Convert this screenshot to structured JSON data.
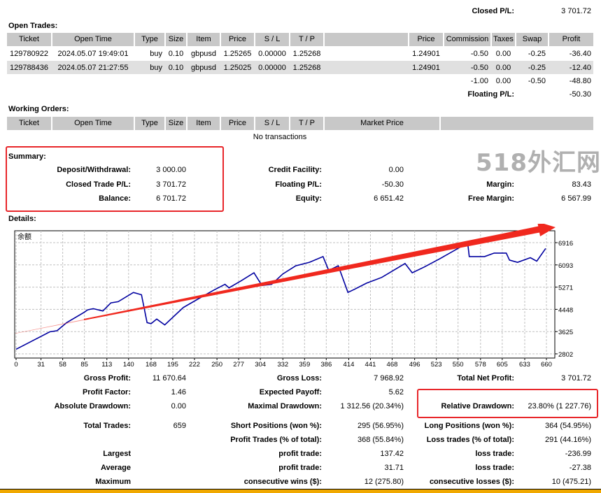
{
  "closed_pl": {
    "label": "Closed P/L:",
    "value": "3 701.72"
  },
  "open_trades": {
    "title": "Open Trades:",
    "headers": [
      "Ticket",
      "Open Time",
      "Type",
      "Size",
      "Item",
      "Price",
      "S / L",
      "T / P",
      "",
      "Price",
      "Commission",
      "Taxes",
      "Swap",
      "Profit"
    ],
    "rows": [
      [
        "129780922",
        "2024.05.07 19:49:01",
        "buy",
        "0.10",
        "gbpusd",
        "1.25265",
        "0.00000",
        "1.25268",
        "",
        "1.24901",
        "-0.50",
        "0.00",
        "-0.25",
        "-36.40"
      ],
      [
        "129788436",
        "2024.05.07 21:27:55",
        "buy",
        "0.10",
        "gbpusd",
        "1.25025",
        "0.00000",
        "1.25268",
        "",
        "1.24901",
        "-0.50",
        "0.00",
        "-0.25",
        "-12.40"
      ]
    ],
    "totals": {
      "commission": "-1.00",
      "taxes": "0.00",
      "swap": "-0.50",
      "profit": "-48.80"
    },
    "floating_pl": {
      "label": "Floating P/L:",
      "value": "-50.30"
    }
  },
  "working_orders": {
    "title": "Working Orders:",
    "headers": [
      "Ticket",
      "Open Time",
      "Type",
      "Size",
      "Item",
      "Price",
      "S / L",
      "T / P",
      "Market Price",
      ""
    ],
    "empty_text": "No transactions"
  },
  "summary": {
    "title": "Summary:",
    "deposit": {
      "label": "Deposit/Withdrawal:",
      "value": "3 000.00"
    },
    "closed_trade_pl": {
      "label": "Closed Trade P/L:",
      "value": "3 701.72"
    },
    "balance": {
      "label": "Balance:",
      "value": "6 701.72"
    },
    "credit": {
      "label": "Credit Facility:",
      "value": "0.00"
    },
    "floating": {
      "label": "Floating P/L:",
      "value": "-50.30"
    },
    "equity": {
      "label": "Equity:",
      "value": "6 651.42"
    },
    "margin": {
      "label": "Margin:",
      "value": "83.43"
    },
    "free_margin": {
      "label": "Free Margin:",
      "value": "6 567.99"
    }
  },
  "details": {
    "title": "Details:"
  },
  "chart_data": {
    "type": "line",
    "title": "余额",
    "y_ticks": [
      2802,
      3625,
      4448,
      5271,
      6093,
      6916
    ],
    "x_ticks": [
      0,
      31,
      58,
      85,
      113,
      140,
      168,
      195,
      222,
      250,
      277,
      304,
      332,
      359,
      386,
      414,
      441,
      468,
      496,
      523,
      550,
      578,
      605,
      633,
      660
    ],
    "grid": true,
    "series": [
      {
        "color": "#0000a0",
        "x": [
          0,
          28,
          42,
          51,
          63,
          85,
          89,
          96,
          108,
          118,
          127,
          146,
          156,
          163,
          168,
          175,
          185,
          208,
          228,
          246,
          260,
          265,
          280,
          296,
          306,
          318,
          332,
          348,
          365,
          382,
          389,
          401,
          413,
          422,
          436,
          455,
          484,
          493,
          508,
          527,
          555,
          562,
          564,
          583,
          595,
          610,
          614,
          624,
          640,
          648,
          659
        ],
        "y": [
          2973,
          3402,
          3616,
          3659,
          3959,
          4345,
          4430,
          4473,
          4388,
          4688,
          4731,
          5073,
          4988,
          3959,
          3916,
          4088,
          3873,
          4516,
          4859,
          5159,
          5373,
          5245,
          5502,
          5802,
          5330,
          5373,
          5759,
          6059,
          6188,
          6402,
          5888,
          6059,
          5073,
          5202,
          5416,
          5630,
          6145,
          5802,
          6016,
          6316,
          6788,
          6916,
          6402,
          6402,
          6530,
          6530,
          6273,
          6188,
          6359,
          6230,
          6701
        ]
      }
    ],
    "annotation_color": "#f0281e"
  },
  "stats": [
    {
      "label": "Gross Profit:",
      "value": "11 670.64",
      "label2": "Gross Loss:",
      "value2": "7 968.92",
      "label3": "Total Net Profit:",
      "value3": "3 701.72"
    },
    {
      "label": "Profit Factor:",
      "value": "1.46",
      "label2": "Expected Payoff:",
      "value2": "5.62",
      "label3": "",
      "value3": ""
    },
    {
      "label": "Absolute Drawdown:",
      "value": "0.00",
      "label2": "Maximal Drawdown:",
      "value2": "1 312.56 (20.34%)",
      "label3": "Relative Drawdown:",
      "value3": "23.80% (1 227.76)"
    },
    {
      "label": "Total Trades:",
      "value": "659",
      "label2": "Short Positions (won %):",
      "value2": "295 (56.95%)",
      "label3": "Long Positions (won %):",
      "value3": "364 (54.95%)"
    },
    {
      "label": "",
      "value": "",
      "label2": "Profit Trades (% of total):",
      "value2": "368 (55.84%)",
      "label3": "Loss trades (% of total):",
      "value3": "291 (44.16%)"
    },
    {
      "label": "Largest",
      "value": "",
      "label2": "profit trade:",
      "value2": "137.42",
      "label3": "loss trade:",
      "value3": "-236.99"
    },
    {
      "label": "Average",
      "value": "",
      "label2": "profit trade:",
      "value2": "31.71",
      "label3": "loss trade:",
      "value3": "-27.38"
    },
    {
      "label": "Maximum",
      "value": "",
      "label2": "consecutive wins ($):",
      "value2": "12 (275.80)",
      "label3": "consecutive losses ($):",
      "value3": "10 (475.21)"
    }
  ],
  "watermark": "518外汇网"
}
